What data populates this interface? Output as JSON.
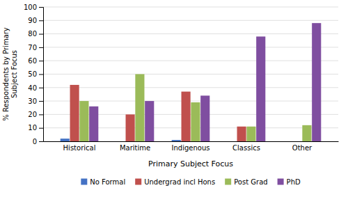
{
  "chart_data": {
    "type": "bar",
    "xlabel": "Primary Subject Focus",
    "ylabel": "% Respondents by Primary\nSubject Focus",
    "categories": [
      "Historical",
      "Maritime",
      "Indigenous",
      "Classics",
      "Other"
    ],
    "series": [
      {
        "name": "No Formal",
        "color": "#4472C4",
        "values": [
          2,
          0,
          1,
          0,
          0
        ]
      },
      {
        "name": "Undergrad incl Hons",
        "color": "#C0504D",
        "values": [
          42,
          20,
          37,
          11,
          0
        ]
      },
      {
        "name": "Post Grad",
        "color": "#9BBB59",
        "values": [
          30,
          50,
          29,
          11,
          12
        ]
      },
      {
        "name": "PhD",
        "color": "#7F4EA0",
        "values": [
          26,
          30,
          34,
          78,
          88
        ]
      }
    ],
    "ylim": [
      0,
      100
    ],
    "yticks": [
      0,
      10,
      20,
      30,
      40,
      50,
      60,
      70,
      80,
      90,
      100
    ],
    "grid": true,
    "legend": "bottom"
  }
}
